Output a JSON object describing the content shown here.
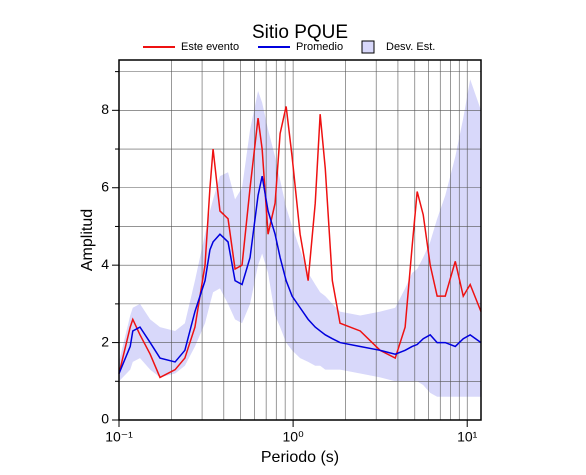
{
  "chart_data": {
    "type": "line",
    "title": "Sitio PQUE",
    "xlabel": "Periodo (s)",
    "ylabel": "Amplitud",
    "xscale": "log",
    "xlim": [
      0.1,
      12
    ],
    "ylim": [
      0,
      9.3
    ],
    "xticks": [
      {
        "value": 0.1,
        "label": "10⁻¹"
      },
      {
        "value": 1,
        "label": "10⁰"
      },
      {
        "value": 10,
        "label": "10¹"
      }
    ],
    "yticks": [
      0,
      2,
      4,
      6,
      8
    ],
    "minor_yticks": [
      1,
      3,
      5,
      7,
      9
    ],
    "grid": true,
    "legend": "top",
    "x": [
      0.1,
      0.116,
      0.12,
      0.132,
      0.151,
      0.172,
      0.21,
      0.239,
      0.273,
      0.312,
      0.333,
      0.347,
      0.38,
      0.423,
      0.464,
      0.509,
      0.566,
      0.629,
      0.664,
      0.718,
      0.788,
      0.842,
      0.912,
      0.987,
      1.097,
      1.22,
      1.34,
      1.43,
      1.53,
      1.68,
      1.86,
      2.43,
      3.16,
      3.86,
      4.4,
      4.83,
      5.16,
      5.59,
      6.13,
      6.72,
      7.48,
      8.54,
      9.49,
      10.4,
      12.0
    ],
    "series": [
      {
        "name": "Este evento",
        "color": "#ee1111",
        "values": [
          1.2,
          2.4,
          2.6,
          2.2,
          1.7,
          1.1,
          1.3,
          1.6,
          2.4,
          4.0,
          6.0,
          7.0,
          5.4,
          5.2,
          3.9,
          4.0,
          6.0,
          7.8,
          7.0,
          4.8,
          5.6,
          7.4,
          8.1,
          6.8,
          4.8,
          3.6,
          5.6,
          7.9,
          6.5,
          3.6,
          2.5,
          2.3,
          1.8,
          1.6,
          2.4,
          4.5,
          5.9,
          5.3,
          4.0,
          3.2,
          3.2,
          4.1,
          3.2,
          3.5,
          2.8
        ]
      },
      {
        "name": "Promedio",
        "color": "#0000dd",
        "values": [
          1.2,
          1.9,
          2.3,
          2.4,
          2.0,
          1.6,
          1.5,
          1.8,
          2.8,
          3.6,
          4.4,
          4.6,
          4.8,
          4.6,
          3.6,
          3.5,
          4.2,
          5.8,
          6.3,
          5.4,
          4.8,
          4.2,
          3.6,
          3.2,
          2.9,
          2.6,
          2.4,
          2.3,
          2.2,
          2.1,
          2.0,
          1.9,
          1.8,
          1.7,
          1.8,
          1.9,
          1.95,
          2.1,
          2.2,
          2.0,
          2.0,
          1.9,
          2.1,
          2.2,
          2.0
        ]
      }
    ],
    "band": {
      "name": "Desv. Est.",
      "color": "#d8d8fa",
      "lower": [
        1.0,
        1.3,
        1.5,
        1.6,
        1.3,
        1.1,
        1.2,
        1.4,
        1.9,
        2.5,
        3.0,
        3.3,
        3.4,
        3.0,
        2.6,
        2.5,
        3.0,
        4.0,
        4.3,
        3.8,
        2.7,
        2.4,
        2.0,
        1.8,
        1.6,
        1.5,
        1.4,
        1.4,
        1.3,
        1.3,
        1.3,
        1.2,
        1.1,
        1.0,
        1.0,
        1.0,
        1.0,
        0.9,
        0.7,
        0.6,
        0.6,
        0.6,
        0.6,
        0.6,
        0.6
      ],
      "upper": [
        1.5,
        2.7,
        2.9,
        3.0,
        2.6,
        2.4,
        2.3,
        2.5,
        3.6,
        4.8,
        5.4,
        5.7,
        6.3,
        6.4,
        5.7,
        6.0,
        7.5,
        8.5,
        8.2,
        7.5,
        6.8,
        6.2,
        5.5,
        5.0,
        4.4,
        3.8,
        3.5,
        3.3,
        3.2,
        3.0,
        2.8,
        2.7,
        2.8,
        2.9,
        3.4,
        3.8,
        3.9,
        4.2,
        4.6,
        5.2,
        5.8,
        6.8,
        7.8,
        8.8,
        8.0
      ]
    }
  }
}
